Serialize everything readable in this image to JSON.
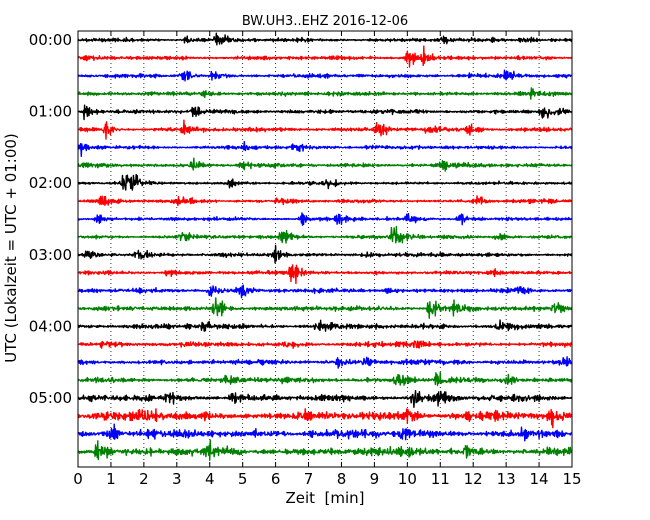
{
  "chart_data": {
    "type": "line",
    "title": "BW.UH3..EHZ 2016-12-06",
    "xlabel": "Zeit  [min]",
    "ylabel": "UTC (Lokalzeit = UTC + 01:00)",
    "xlim": [
      0,
      15
    ],
    "x_ticks": [
      "0",
      "1",
      "2",
      "3",
      "4",
      "5",
      "6",
      "7",
      "8",
      "9",
      "10",
      "11",
      "12",
      "13",
      "14",
      "15"
    ],
    "y_ticks": [
      "00:00",
      "01:00",
      "02:00",
      "03:00",
      "04:00",
      "05:00"
    ],
    "grid": "vertical-dotted",
    "trace_colors": [
      "#000000",
      "#ff0000",
      "#0000ff",
      "#008000"
    ],
    "traces": [
      {
        "start": "00:00",
        "amplitude": 0.45,
        "events": [
          [
            3.3,
            0.9
          ],
          [
            4.2,
            1.3
          ],
          [
            11.1,
            1.1
          ],
          [
            13.5,
            0.8
          ]
        ]
      },
      {
        "start": "00:15",
        "amplitude": 0.45,
        "events": [
          [
            10.0,
            1.6
          ],
          [
            10.5,
            1.0
          ]
        ]
      },
      {
        "start": "00:30",
        "amplitude": 0.45,
        "events": [
          [
            3.2,
            1.1
          ],
          [
            4.1,
            0.8
          ],
          [
            13.0,
            0.9
          ]
        ]
      },
      {
        "start": "00:45",
        "amplitude": 0.45,
        "events": [
          [
            3.8,
            0.8
          ],
          [
            6.2,
            0.7
          ],
          [
            13.8,
            0.8
          ]
        ]
      },
      {
        "start": "01:00",
        "amplitude": 0.5,
        "events": [
          [
            0.2,
            1.4
          ],
          [
            3.5,
            1.0
          ],
          [
            14.1,
            1.6
          ],
          [
            14.3,
            1.2
          ]
        ]
      },
      {
        "start": "01:15",
        "amplitude": 0.5,
        "events": [
          [
            0.8,
            1.3
          ],
          [
            3.2,
            1.3
          ],
          [
            9.1,
            1.9
          ],
          [
            10.6,
            1.0
          ],
          [
            11.9,
            0.9
          ]
        ]
      },
      {
        "start": "01:30",
        "amplitude": 0.45,
        "events": [
          [
            0.1,
            1.0
          ],
          [
            5.1,
            0.8
          ],
          [
            6.6,
            0.8
          ],
          [
            8.8,
            0.8
          ]
        ]
      },
      {
        "start": "01:45",
        "amplitude": 0.45,
        "events": [
          [
            3.5,
            1.5
          ],
          [
            5.0,
            0.8
          ],
          [
            11.0,
            0.8
          ]
        ]
      },
      {
        "start": "02:00",
        "amplitude": 0.35,
        "events": [
          [
            1.4,
            2.4
          ],
          [
            1.6,
            1.6
          ],
          [
            4.6,
            0.8
          ],
          [
            7.6,
            1.0
          ]
        ]
      },
      {
        "start": "02:15",
        "amplitude": 0.4,
        "events": [
          [
            0.7,
            1.4
          ],
          [
            3.0,
            1.0
          ],
          [
            6.1,
            1.0
          ],
          [
            12.1,
            1.0
          ]
        ]
      },
      {
        "start": "02:30",
        "amplitude": 0.4,
        "events": [
          [
            0.6,
            0.9
          ],
          [
            6.8,
            0.9
          ],
          [
            7.9,
            1.0
          ],
          [
            10.0,
            0.8
          ],
          [
            11.6,
            1.3
          ]
        ]
      },
      {
        "start": "02:45",
        "amplitude": 0.45,
        "events": [
          [
            3.1,
            1.0
          ],
          [
            6.2,
            1.5
          ],
          [
            9.6,
            2.6
          ],
          [
            12.7,
            0.9
          ]
        ]
      },
      {
        "start": "03:00",
        "amplitude": 0.45,
        "events": [
          [
            0.3,
            1.1
          ],
          [
            1.8,
            1.0
          ],
          [
            6.0,
            0.9
          ],
          [
            8.7,
            0.9
          ]
        ]
      },
      {
        "start": "03:15",
        "amplitude": 0.45,
        "events": [
          [
            6.5,
            1.9
          ],
          [
            2.7,
            0.9
          ],
          [
            12.6,
            0.8
          ]
        ]
      },
      {
        "start": "03:30",
        "amplitude": 0.5,
        "events": [
          [
            4.0,
            1.4
          ],
          [
            4.9,
            2.0
          ],
          [
            9.4,
            0.8
          ],
          [
            13.4,
            0.8
          ]
        ]
      },
      {
        "start": "03:45",
        "amplitude": 0.55,
        "events": [
          [
            4.2,
            3.0
          ],
          [
            10.7,
            2.0
          ],
          [
            11.4,
            1.4
          ],
          [
            14.5,
            1.3
          ]
        ]
      },
      {
        "start": "04:00",
        "amplitude": 0.6,
        "events": [
          [
            3.8,
            1.3
          ],
          [
            7.3,
            1.3
          ],
          [
            12.8,
            1.0
          ]
        ]
      },
      {
        "start": "04:15",
        "amplitude": 0.55,
        "events": [
          [
            0.8,
            0.9
          ],
          [
            6.3,
            0.9
          ],
          [
            10.2,
            1.1
          ]
        ]
      },
      {
        "start": "04:30",
        "amplitude": 0.6,
        "events": [
          [
            8.7,
            1.1
          ],
          [
            7.9,
            0.9
          ],
          [
            14.7,
            1.1
          ]
        ]
      },
      {
        "start": "04:45",
        "amplitude": 0.65,
        "events": [
          [
            9.7,
            1.7
          ],
          [
            10.9,
            1.3
          ],
          [
            4.5,
            0.9
          ],
          [
            13.0,
            0.9
          ]
        ]
      },
      {
        "start": "05:00",
        "amplitude": 0.75,
        "events": [
          [
            10.2,
            2.0
          ],
          [
            11.0,
            1.7
          ],
          [
            4.7,
            1.0
          ],
          [
            2.7,
            0.9
          ]
        ]
      },
      {
        "start": "05:15",
        "amplitude": 1.05,
        "events": [
          [
            2.0,
            1.5
          ],
          [
            10.0,
            1.2
          ],
          [
            14.4,
            1.2
          ]
        ]
      },
      {
        "start": "05:30",
        "amplitude": 0.95,
        "events": [
          [
            1.0,
            1.2
          ],
          [
            9.8,
            1.2
          ],
          [
            13.5,
            1.1
          ]
        ]
      },
      {
        "start": "05:45",
        "amplitude": 1.0,
        "events": [
          [
            0.6,
            1.4
          ],
          [
            4.0,
            1.1
          ],
          [
            11.8,
            1.1
          ]
        ]
      }
    ]
  }
}
